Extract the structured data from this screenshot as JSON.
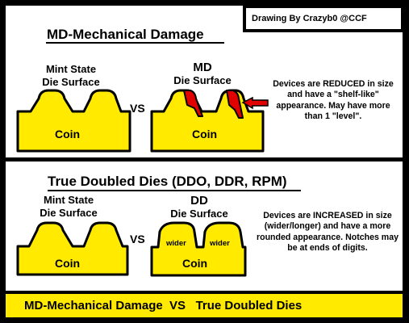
{
  "credit": "Drawing By Crazyb0 @CCF",
  "top": {
    "title": "MD-Mechanical Damage",
    "left_label": [
      "Mint State",
      "Die Surface"
    ],
    "right_label": [
      "MD",
      "Die Surface"
    ],
    "coin_left": "Coin",
    "coin_right": "Coin",
    "vs": "VS",
    "note": "Devices are REDUCED in size and have a \"shelf-like\" appearance. May have more than 1 \"level\"."
  },
  "bottom": {
    "title": "True Doubled Dies (DDO, DDR, RPM)",
    "left_label": [
      "Mint State",
      "Die Surface"
    ],
    "right_label": [
      "DD",
      "Die Surface"
    ],
    "coin_left": "Coin",
    "coin_right": "Coin",
    "vs": "VS",
    "wider_1": "wider",
    "wider_2": "wider",
    "note": "Devices are INCREASED in size (wider/longer) and have a more rounded appearance. Notches may be at ends of digits."
  },
  "footer": "MD-Mechanical Damage  VS   True Doubled Dies",
  "colors": {
    "background": "#000000",
    "panel": "#ffffff",
    "coin": "#ffea00",
    "damage": "#e00000",
    "arrow": "#e00000"
  }
}
